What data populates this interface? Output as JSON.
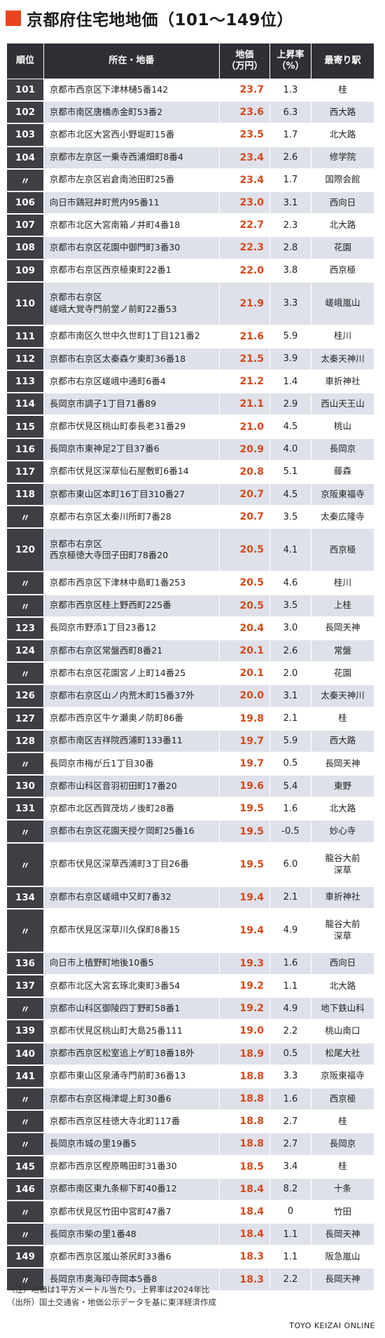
{
  "title": "京都府住宅地地価（101〜149位）",
  "colors": {
    "accent": "#e8451e",
    "header_bg": "#2f2f36",
    "rank_bg": "#3e3e45",
    "stripe": "#dfe1ea",
    "price_color": "#d44a1c"
  },
  "table": {
    "headers": {
      "rank": "順位",
      "address": "所在・地番",
      "price_line1": "地価",
      "price_line2": "（万円）",
      "rate_line1": "上昇率",
      "rate_line2": "（%）",
      "station": "最寄り駅"
    },
    "rows": [
      {
        "rank": "101",
        "addr1": "京都市西京区下津林樋5番142",
        "addr2": "",
        "price": "23.7",
        "rate": "1.3",
        "st1": "桂",
        "st2": ""
      },
      {
        "rank": "102",
        "addr1": "京都市南区唐橋赤金町53番2",
        "addr2": "",
        "price": "23.6",
        "rate": "6.3",
        "st1": "西大路",
        "st2": ""
      },
      {
        "rank": "103",
        "addr1": "京都市北区大宮西小野堀町15番",
        "addr2": "",
        "price": "23.5",
        "rate": "1.7",
        "st1": "北大路",
        "st2": ""
      },
      {
        "rank": "104",
        "addr1": "京都市左京区一乗寺西浦畑町8番4",
        "addr2": "",
        "price": "23.4",
        "rate": "2.6",
        "st1": "修学院",
        "st2": ""
      },
      {
        "rank": "〃",
        "addr1": "京都市左京区岩倉南池田町25番",
        "addr2": "",
        "price": "23.4",
        "rate": "1.7",
        "st1": "国際会館",
        "st2": ""
      },
      {
        "rank": "106",
        "addr1": "向日市鶏冠井町荒内95番11",
        "addr2": "",
        "price": "23.0",
        "rate": "3.1",
        "st1": "西向日",
        "st2": ""
      },
      {
        "rank": "107",
        "addr1": "京都市北区大宮南箱ノ井町4番18",
        "addr2": "",
        "price": "22.7",
        "rate": "2.3",
        "st1": "北大路",
        "st2": ""
      },
      {
        "rank": "108",
        "addr1": "京都市右京区花園中御門町3番30",
        "addr2": "",
        "price": "22.3",
        "rate": "2.8",
        "st1": "花園",
        "st2": ""
      },
      {
        "rank": "109",
        "addr1": "京都市右京区西京極東町22番1",
        "addr2": "",
        "price": "22.0",
        "rate": "3.8",
        "st1": "西京極",
        "st2": ""
      },
      {
        "rank": "110",
        "addr1": "京都市右京区",
        "addr2": "嵯峨大覚寺門前堂ノ前町22番53",
        "price": "21.9",
        "rate": "3.3",
        "st1": "嵯峨嵐山",
        "st2": ""
      },
      {
        "rank": "111",
        "addr1": "京都市南区久世中久世町1丁目121番2",
        "addr2": "",
        "price": "21.6",
        "rate": "5.9",
        "st1": "桂川",
        "st2": ""
      },
      {
        "rank": "112",
        "addr1": "京都市右京区太秦森ケ東町36番18",
        "addr2": "",
        "price": "21.5",
        "rate": "3.9",
        "st1": "太秦天神川",
        "st2": ""
      },
      {
        "rank": "113",
        "addr1": "京都市右京区嵯峨中通町6番4",
        "addr2": "",
        "price": "21.2",
        "rate": "1.4",
        "st1": "車折神社",
        "st2": ""
      },
      {
        "rank": "114",
        "addr1": "長岡京市調子1丁目71番89",
        "addr2": "",
        "price": "21.1",
        "rate": "2.9",
        "st1": "西山天王山",
        "st2": ""
      },
      {
        "rank": "115",
        "addr1": "京都市伏見区桃山町泰長老31番29",
        "addr2": "",
        "price": "21.0",
        "rate": "4.5",
        "st1": "桃山",
        "st2": ""
      },
      {
        "rank": "116",
        "addr1": "長岡京市東神足2丁目37番6",
        "addr2": "",
        "price": "20.9",
        "rate": "4.0",
        "st1": "長岡京",
        "st2": ""
      },
      {
        "rank": "117",
        "addr1": "京都市伏見区深草仙石屋敷町6番14",
        "addr2": "",
        "price": "20.8",
        "rate": "5.1",
        "st1": "藤森",
        "st2": ""
      },
      {
        "rank": "118",
        "addr1": "京都市東山区本町16丁目310番27",
        "addr2": "",
        "price": "20.7",
        "rate": "4.5",
        "st1": "京阪東福寺",
        "st2": ""
      },
      {
        "rank": "〃",
        "addr1": "京都市右京区太秦川所町7番28",
        "addr2": "",
        "price": "20.7",
        "rate": "3.5",
        "st1": "太秦広隆寺",
        "st2": ""
      },
      {
        "rank": "120",
        "addr1": "京都市右京区",
        "addr2": "西京極徳大寺団子田町78番20",
        "price": "20.5",
        "rate": "4.1",
        "st1": "西京極",
        "st2": ""
      },
      {
        "rank": "〃",
        "addr1": "京都市西京区下津林中島町1番253",
        "addr2": "",
        "price": "20.5",
        "rate": "4.6",
        "st1": "桂川",
        "st2": ""
      },
      {
        "rank": "〃",
        "addr1": "京都市西京区桂上野西町225番",
        "addr2": "",
        "price": "20.5",
        "rate": "3.5",
        "st1": "上桂",
        "st2": ""
      },
      {
        "rank": "123",
        "addr1": "長岡京市野添1丁目23番12",
        "addr2": "",
        "price": "20.4",
        "rate": "3.0",
        "st1": "長岡天神",
        "st2": ""
      },
      {
        "rank": "124",
        "addr1": "京都市右京区常盤西町8番21",
        "addr2": "",
        "price": "20.1",
        "rate": "2.6",
        "st1": "常盤",
        "st2": ""
      },
      {
        "rank": "〃",
        "addr1": "京都市右京区花園宮ノ上町14番25",
        "addr2": "",
        "price": "20.1",
        "rate": "2.0",
        "st1": "花園",
        "st2": ""
      },
      {
        "rank": "126",
        "addr1": "京都市右京区山ノ内荒木町15番37外",
        "addr2": "",
        "price": "20.0",
        "rate": "3.1",
        "st1": "太秦天神川",
        "st2": ""
      },
      {
        "rank": "127",
        "addr1": "京都市西京区牛ケ瀬奥ノ防町86番",
        "addr2": "",
        "price": "19.8",
        "rate": "2.1",
        "st1": "桂",
        "st2": ""
      },
      {
        "rank": "128",
        "addr1": "京都市南区吉祥院西浦町133番11",
        "addr2": "",
        "price": "19.7",
        "rate": "5.9",
        "st1": "西大路",
        "st2": ""
      },
      {
        "rank": "〃",
        "addr1": "長岡京市梅が丘1丁目30番",
        "addr2": "",
        "price": "19.7",
        "rate": "0.5",
        "st1": "長岡天神",
        "st2": ""
      },
      {
        "rank": "130",
        "addr1": "京都市山科区音羽初田町17番20",
        "addr2": "",
        "price": "19.6",
        "rate": "5.4",
        "st1": "東野",
        "st2": ""
      },
      {
        "rank": "131",
        "addr1": "京都市北区西賀茂坊ノ後町28番",
        "addr2": "",
        "price": "19.5",
        "rate": "1.6",
        "st1": "北大路",
        "st2": ""
      },
      {
        "rank": "〃",
        "addr1": "京都市右京区花園天授ケ岡町25番16",
        "addr2": "",
        "price": "19.5",
        "rate": "-0.5",
        "st1": "妙心寺",
        "st2": ""
      },
      {
        "rank": "〃",
        "addr1": "京都市伏見区深草西浦町3丁目26番",
        "addr2": "",
        "price": "19.5",
        "rate": "6.0",
        "st1": "龍谷大前",
        "st2": "深草"
      },
      {
        "rank": "134",
        "addr1": "京都市右京区嵯峨中又町7番32",
        "addr2": "",
        "price": "19.4",
        "rate": "2.1",
        "st1": "車折神社",
        "st2": ""
      },
      {
        "rank": "〃",
        "addr1": "京都市伏見区深草川久保町8番15",
        "addr2": "",
        "price": "19.4",
        "rate": "4.9",
        "st1": "龍谷大前",
        "st2": "深草"
      },
      {
        "rank": "136",
        "addr1": "向日市上植野町地後10番5",
        "addr2": "",
        "price": "19.3",
        "rate": "1.6",
        "st1": "西向日",
        "st2": ""
      },
      {
        "rank": "137",
        "addr1": "京都市北区大宮玄琢北東町3番54",
        "addr2": "",
        "price": "19.2",
        "rate": "1.1",
        "st1": "北大路",
        "st2": ""
      },
      {
        "rank": "〃",
        "addr1": "京都市山科区御陵四丁野町58番1",
        "addr2": "",
        "price": "19.2",
        "rate": "4.9",
        "st1": "地下鉄山科",
        "st2": ""
      },
      {
        "rank": "139",
        "addr1": "京都市伏見区桃山町大島25番111",
        "addr2": "",
        "price": "19.0",
        "rate": "2.2",
        "st1": "桃山南口",
        "st2": ""
      },
      {
        "rank": "140",
        "addr1": "京都市西京区松室追上ゲ町18番18外",
        "addr2": "",
        "price": "18.9",
        "rate": "0.5",
        "st1": "松尾大社",
        "st2": ""
      },
      {
        "rank": "141",
        "addr1": "京都市東山区泉涌寺門前町36番13",
        "addr2": "",
        "price": "18.8",
        "rate": "3.3",
        "st1": "京阪東福寺",
        "st2": ""
      },
      {
        "rank": "〃",
        "addr1": "京都市右京区梅津堤上町30番6",
        "addr2": "",
        "price": "18.8",
        "rate": "1.6",
        "st1": "西京極",
        "st2": ""
      },
      {
        "rank": "〃",
        "addr1": "京都市西京区桂徳大寺北町117番",
        "addr2": "",
        "price": "18.8",
        "rate": "2.7",
        "st1": "桂",
        "st2": ""
      },
      {
        "rank": "〃",
        "addr1": "長岡京市城の里19番5",
        "addr2": "",
        "price": "18.8",
        "rate": "2.7",
        "st1": "長岡京",
        "st2": ""
      },
      {
        "rank": "145",
        "addr1": "京都市西京区樫原鴫田町31番30",
        "addr2": "",
        "price": "18.5",
        "rate": "3.4",
        "st1": "桂",
        "st2": ""
      },
      {
        "rank": "146",
        "addr1": "京都市南区東九条柳下町40番12",
        "addr2": "",
        "price": "18.4",
        "rate": "8.2",
        "st1": "十条",
        "st2": ""
      },
      {
        "rank": "〃",
        "addr1": "京都市伏見区竹田中宮町47番7",
        "addr2": "",
        "price": "18.4",
        "rate": "0",
        "st1": "竹田",
        "st2": ""
      },
      {
        "rank": "〃",
        "addr1": "長岡京市柴の里1番48",
        "addr2": "",
        "price": "18.4",
        "rate": "1.1",
        "st1": "長岡天神",
        "st2": ""
      },
      {
        "rank": "149",
        "addr1": "京都市西京区嵐山茶尻町33番6",
        "addr2": "",
        "price": "18.3",
        "rate": "1.1",
        "st1": "阪急嵐山",
        "st2": ""
      },
      {
        "rank": "〃",
        "addr1": "長岡京市奥海印寺岡本5番8",
        "addr2": "",
        "price": "18.3",
        "rate": "2.2",
        "st1": "長岡天神",
        "st2": ""
      }
    ]
  },
  "notes": {
    "note": "（注）地価は1平方メートル当たり。上昇率は2024年比",
    "source": "（出所）国土交通省・地価公示データを基に東洋経済作成"
  },
  "brand": "TOYO KEIZAI ONLINE"
}
